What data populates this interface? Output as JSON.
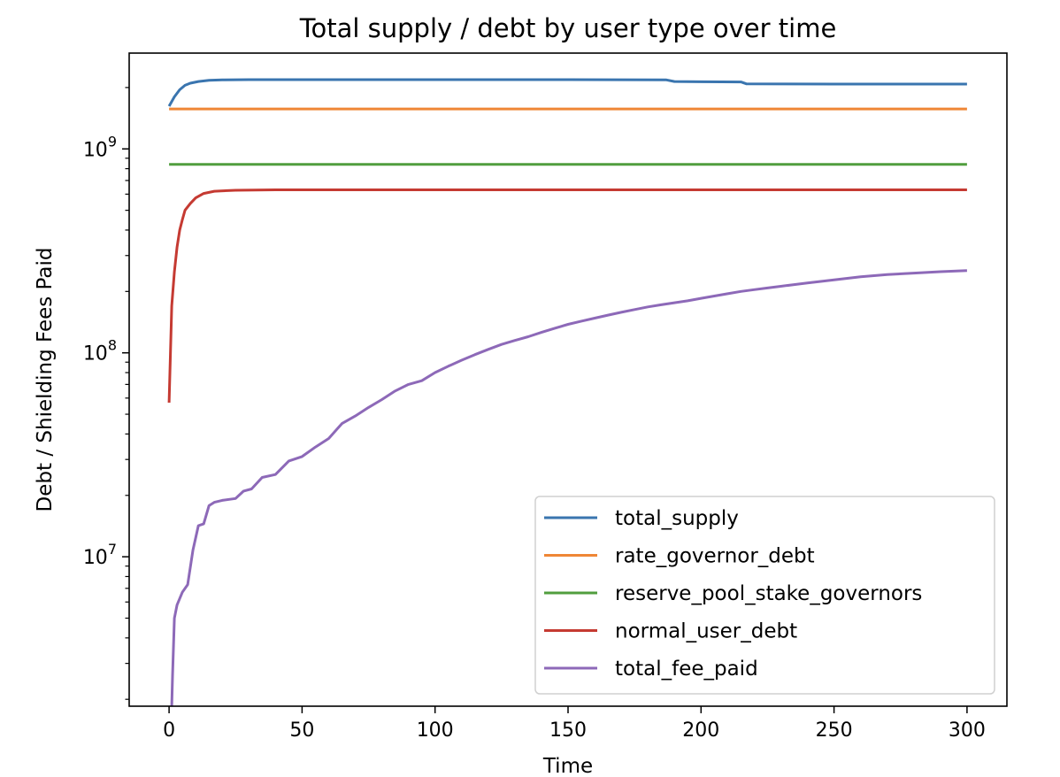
{
  "chart_data": {
    "type": "line",
    "title": "Total supply / debt by user type over time",
    "xlabel": "Time",
    "ylabel": "Debt / Shielding Fees Paid",
    "xlim": [
      -15,
      315
    ],
    "ylim": [
      1850000,
      2950000000
    ],
    "yscale": "log",
    "grid": false,
    "legend_position": "lower right",
    "x_ticks": [
      0,
      50,
      100,
      150,
      200,
      250,
      300
    ],
    "y_ticks": [
      {
        "value": 10000000,
        "base": "10",
        "exp": "7"
      },
      {
        "value": 100000000,
        "base": "10",
        "exp": "8"
      },
      {
        "value": 1000000000,
        "base": "10",
        "exp": "9"
      }
    ],
    "series": [
      {
        "name": "total_supply",
        "color": "#3a75af",
        "points": [
          [
            0,
            1620000000
          ],
          [
            2,
            1800000000
          ],
          [
            4,
            1950000000
          ],
          [
            6,
            2050000000
          ],
          [
            8,
            2100000000
          ],
          [
            11,
            2140000000
          ],
          [
            15,
            2170000000
          ],
          [
            20,
            2180000000
          ],
          [
            30,
            2185000000
          ],
          [
            60,
            2185000000
          ],
          [
            100,
            2185000000
          ],
          [
            150,
            2185000000
          ],
          [
            187,
            2180000000
          ],
          [
            190,
            2140000000
          ],
          [
            200,
            2135000000
          ],
          [
            215,
            2130000000
          ],
          [
            217,
            2085000000
          ],
          [
            250,
            2080000000
          ],
          [
            300,
            2080000000
          ]
        ]
      },
      {
        "name": "rate_governor_debt",
        "color": "#ef8636",
        "points": [
          [
            0,
            1570000000
          ],
          [
            100,
            1570000000
          ],
          [
            200,
            1570000000
          ],
          [
            300,
            1570000000
          ]
        ]
      },
      {
        "name": "reserve_pool_stake_governors",
        "color": "#519e3e",
        "points": [
          [
            0,
            840000000
          ],
          [
            100,
            840000000
          ],
          [
            200,
            840000000
          ],
          [
            300,
            840000000
          ]
        ]
      },
      {
        "name": "normal_user_debt",
        "color": "#c53a32",
        "points": [
          [
            0,
            57000000
          ],
          [
            1,
            170000000
          ],
          [
            2,
            250000000
          ],
          [
            3,
            330000000
          ],
          [
            4,
            400000000
          ],
          [
            5,
            450000000
          ],
          [
            6,
            500000000
          ],
          [
            8,
            540000000
          ],
          [
            10,
            575000000
          ],
          [
            13,
            605000000
          ],
          [
            17,
            620000000
          ],
          [
            25,
            627000000
          ],
          [
            40,
            630000000
          ],
          [
            100,
            630000000
          ],
          [
            200,
            630000000
          ],
          [
            300,
            630000000
          ]
        ]
      },
      {
        "name": "total_fee_paid",
        "color": "#8d69b8",
        "points": [
          [
            1,
            1850000
          ],
          [
            1.3,
            2600000
          ],
          [
            2,
            5000000
          ],
          [
            3,
            5800000
          ],
          [
            5,
            6700000
          ],
          [
            7,
            7300000
          ],
          [
            9,
            10800000
          ],
          [
            11,
            14200000
          ],
          [
            13,
            14500000
          ],
          [
            15,
            17800000
          ],
          [
            17,
            18500000
          ],
          [
            20,
            18900000
          ],
          [
            25,
            19300000
          ],
          [
            28,
            21000000
          ],
          [
            31,
            21500000
          ],
          [
            35,
            24500000
          ],
          [
            40,
            25300000
          ],
          [
            45,
            29500000
          ],
          [
            50,
            31000000
          ],
          [
            55,
            34500000
          ],
          [
            60,
            38000000
          ],
          [
            65,
            45000000
          ],
          [
            70,
            49000000
          ],
          [
            75,
            54000000
          ],
          [
            80,
            59000000
          ],
          [
            85,
            65000000
          ],
          [
            90,
            70000000
          ],
          [
            95,
            73000000
          ],
          [
            100,
            80000000
          ],
          [
            105,
            86000000
          ],
          [
            110,
            92000000
          ],
          [
            115,
            98000000
          ],
          [
            120,
            104000000
          ],
          [
            125,
            110000000
          ],
          [
            130,
            115000000
          ],
          [
            135,
            120000000
          ],
          [
            140,
            126000000
          ],
          [
            145,
            132000000
          ],
          [
            150,
            138000000
          ],
          [
            155,
            143000000
          ],
          [
            160,
            148000000
          ],
          [
            165,
            153000000
          ],
          [
            170,
            158000000
          ],
          [
            175,
            163000000
          ],
          [
            180,
            168000000
          ],
          [
            185,
            172000000
          ],
          [
            190,
            176000000
          ],
          [
            195,
            180000000
          ],
          [
            200,
            185000000
          ],
          [
            205,
            190000000
          ],
          [
            210,
            195000000
          ],
          [
            215,
            200000000
          ],
          [
            220,
            204000000
          ],
          [
            225,
            208000000
          ],
          [
            230,
            212000000
          ],
          [
            235,
            216000000
          ],
          [
            240,
            220000000
          ],
          [
            245,
            224000000
          ],
          [
            250,
            228000000
          ],
          [
            260,
            236000000
          ],
          [
            270,
            242000000
          ],
          [
            280,
            246000000
          ],
          [
            290,
            250000000
          ],
          [
            300,
            253000000
          ]
        ]
      }
    ]
  }
}
